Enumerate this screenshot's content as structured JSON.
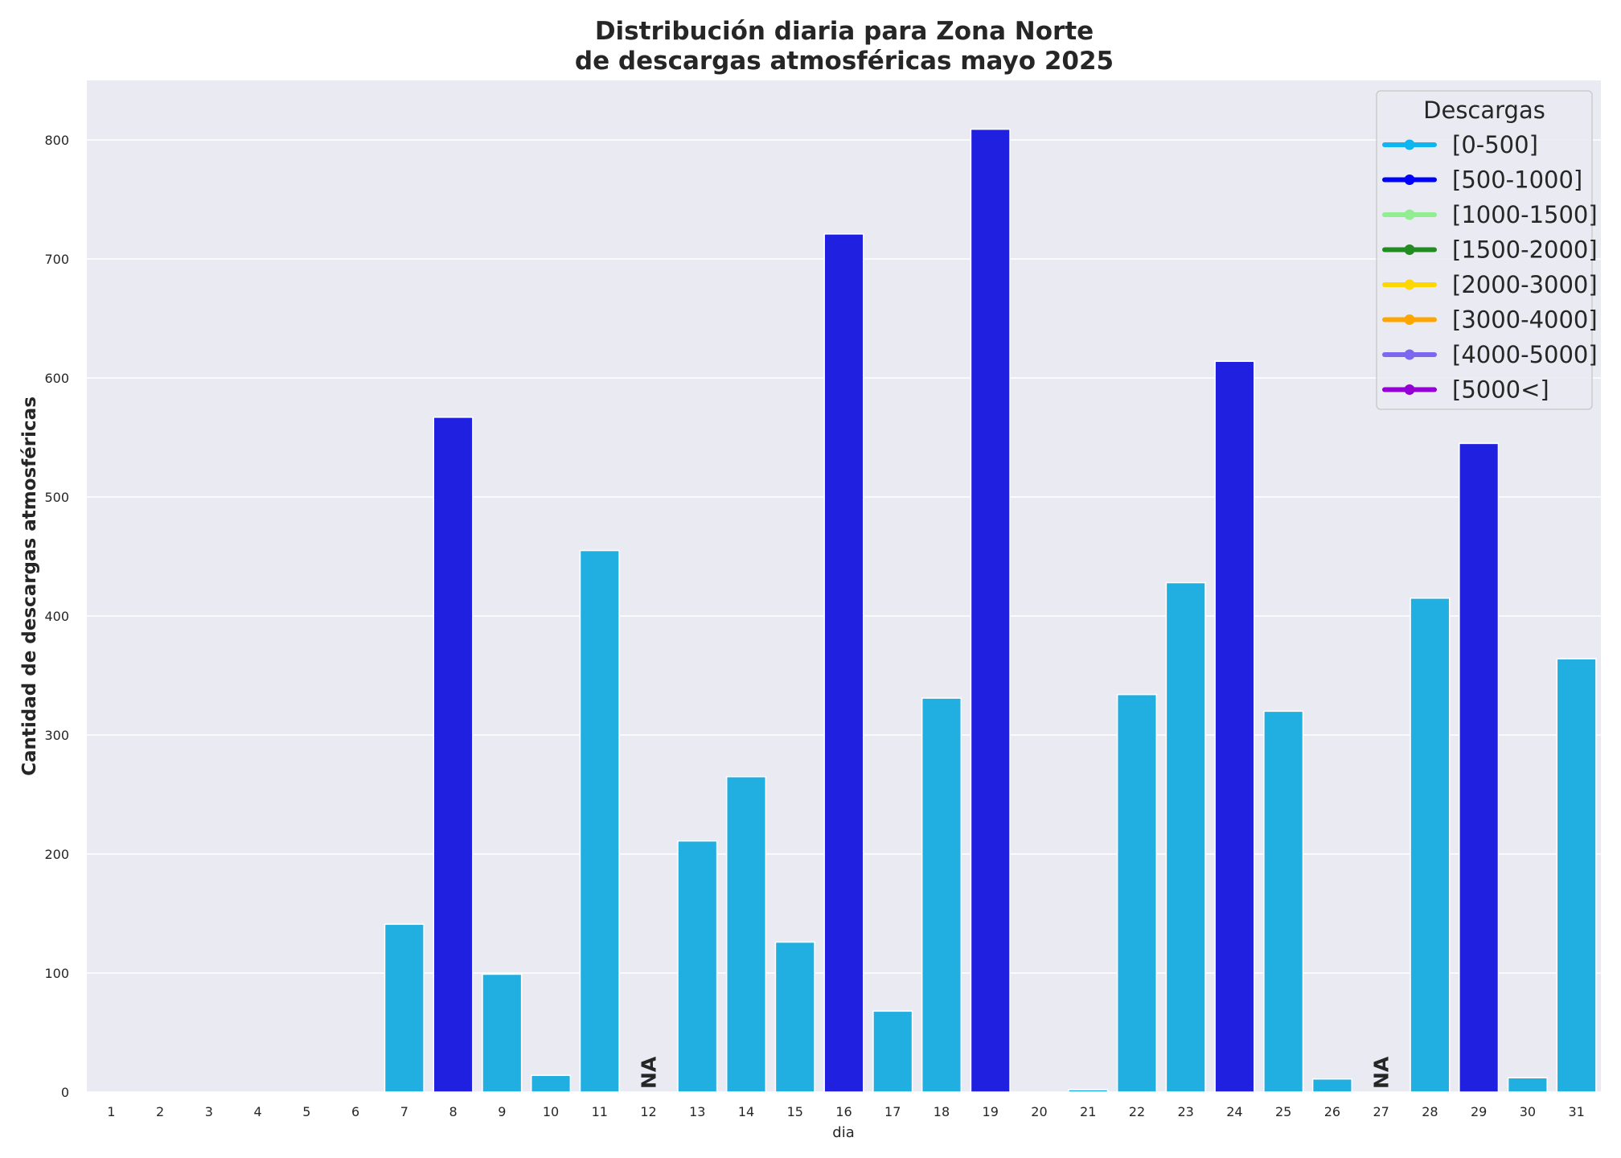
{
  "chart_data": {
    "type": "bar",
    "title_line1": "Distribución diaria para Zona Norte",
    "title_line2": "de descargas atmosféricas mayo 2025",
    "xlabel": "dia",
    "ylabel": "Cantidad de descargas atmosféricas",
    "ylim": [
      0,
      850
    ],
    "yticks": [
      0,
      100,
      200,
      300,
      400,
      500,
      600,
      700,
      800
    ],
    "grid": true,
    "legend_position": "top-right",
    "legend_title": "Descargas",
    "legend": [
      {
        "label": "[0-500]",
        "color": "#0fb5ee"
      },
      {
        "label": "[500-1000]",
        "color": "#0000ff"
      },
      {
        "label": "[1000-1500]",
        "color": "#90ee90"
      },
      {
        "label": "[1500-2000]",
        "color": "#228b22"
      },
      {
        "label": "[2000-3000]",
        "color": "#ffd700"
      },
      {
        "label": "[3000-4000]",
        "color": "#ffa500"
      },
      {
        "label": "[4000-5000]",
        "color": "#7b68ee"
      },
      {
        "label": "[5000<]",
        "color": "#9400d3"
      }
    ],
    "categories": [
      "1",
      "2",
      "3",
      "4",
      "5",
      "6",
      "7",
      "8",
      "9",
      "10",
      "11",
      "12",
      "13",
      "14",
      "15",
      "16",
      "17",
      "18",
      "19",
      "20",
      "21",
      "22",
      "23",
      "24",
      "25",
      "26",
      "27",
      "28",
      "29",
      "30",
      "31"
    ],
    "values": [
      0,
      0,
      0,
      0,
      0,
      0,
      141,
      567,
      99,
      14,
      455,
      null,
      211,
      265,
      126,
      721,
      68,
      331,
      809,
      0,
      2,
      334,
      428,
      614,
      320,
      11,
      null,
      415,
      545,
      12,
      364
    ],
    "missing_label": "NA",
    "bar_colors": {
      "low": "#21aee0",
      "high": "#2020e0"
    }
  }
}
